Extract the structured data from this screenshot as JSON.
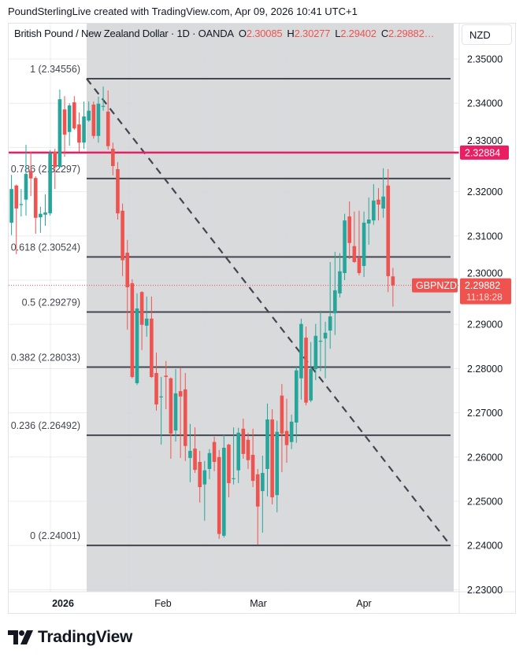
{
  "credit": "PoundSterlingLive created with TradingView.com, Apr 09, 2026 10:41 UTC+1",
  "legend": {
    "title": "British Pound / New Zealand Dollar · 1D · OANDA",
    "o_label": "O",
    "o": "2.30085",
    "h_label": "H",
    "h": "2.30277",
    "l_label": "L",
    "l": "2.29402",
    "c_label": "C",
    "c": "2.29882…"
  },
  "currency_button": "NZD",
  "logo_text": "TradingView",
  "colors": {
    "up": "#26a69a",
    "down": "#ef5350",
    "level_line": "#e91e63",
    "fib_line": "#434651",
    "shade": "#d9dadc"
  },
  "chart_data": {
    "type": "candlestick",
    "symbol": "GBPNZD",
    "ylim": [
      2.225,
      2.355
    ],
    "y_ticks": [
      "2.35000",
      "2.34000",
      "2.33000",
      "2.32000",
      "2.31000",
      "2.30000",
      "2.29000",
      "2.28000",
      "2.27000",
      "2.26000",
      "2.25000",
      "2.24000",
      "2.23000"
    ],
    "x_ticks": [
      "2026",
      "Feb",
      "Mar",
      "Apr"
    ],
    "grid": true,
    "ohlc": [
      [
        2.313,
        2.3238,
        2.3102,
        2.3206
      ],
      [
        2.3214,
        2.3216,
        2.3059,
        2.3162
      ],
      [
        2.317,
        2.3206,
        2.3144,
        2.3172
      ],
      [
        2.3182,
        2.3306,
        2.3146,
        2.324
      ],
      [
        2.3247,
        2.329,
        2.319,
        2.323
      ],
      [
        2.3231,
        2.3235,
        2.3105,
        2.3141
      ],
      [
        2.3142,
        2.3166,
        2.3107,
        2.315
      ],
      [
        2.3148,
        2.3194,
        2.3123,
        2.3153
      ],
      [
        2.3151,
        2.3294,
        2.3146,
        2.3287
      ],
      [
        2.329,
        2.3297,
        2.3206,
        2.3256
      ],
      [
        2.3256,
        2.3431,
        2.3254,
        2.3409
      ],
      [
        2.3386,
        2.3416,
        2.3279,
        2.3329
      ],
      [
        2.3335,
        2.34,
        2.3304,
        2.3395
      ],
      [
        2.3402,
        2.3416,
        2.334,
        2.3343
      ],
      [
        2.3352,
        2.3379,
        2.329,
        2.3311
      ],
      [
        2.3311,
        2.3404,
        2.3297,
        2.337
      ],
      [
        2.3361,
        2.3404,
        2.3358,
        2.3383
      ],
      [
        2.3397,
        2.3404,
        2.332,
        2.3326
      ],
      [
        2.3326,
        2.3415,
        2.3311,
        2.3399
      ],
      [
        2.3392,
        2.3438,
        2.3383,
        2.3394
      ],
      [
        2.3381,
        2.3429,
        2.3295,
        2.3303
      ],
      [
        2.3297,
        2.3311,
        2.3237,
        2.3258
      ],
      [
        2.3251,
        2.3267,
        2.3137,
        2.3151
      ],
      [
        2.3157,
        2.3173,
        2.3009,
        2.3045
      ],
      [
        2.3062,
        2.3091,
        2.2888,
        2.2984
      ],
      [
        2.2993,
        2.3002,
        2.2778,
        2.2781
      ],
      [
        2.2767,
        2.297,
        2.2763,
        2.2936
      ],
      [
        2.2973,
        2.2975,
        2.2842,
        2.2899
      ],
      [
        2.2897,
        2.2963,
        2.2872,
        2.2913
      ],
      [
        2.2913,
        2.2963,
        2.2779,
        2.2781
      ],
      [
        2.279,
        2.2836,
        2.2705,
        2.2719
      ],
      [
        2.2735,
        2.2781,
        2.2628,
        2.2737
      ],
      [
        2.2784,
        2.2817,
        2.2708,
        2.2781
      ],
      [
        2.2778,
        2.278,
        2.2596,
        2.2653
      ],
      [
        2.266,
        2.2799,
        2.2635,
        2.2744
      ],
      [
        2.2749,
        2.2803,
        2.2598,
        2.2737
      ],
      [
        2.2753,
        2.279,
        2.2591,
        2.2625
      ],
      [
        2.2598,
        2.2675,
        2.2543,
        2.2614
      ],
      [
        2.2619,
        2.2667,
        2.2564,
        2.2571
      ],
      [
        2.2589,
        2.2614,
        2.2497,
        2.2532
      ],
      [
        2.2538,
        2.2591,
        2.2456,
        2.257
      ],
      [
        2.2573,
        2.2618,
        2.255,
        2.2609
      ],
      [
        2.2634,
        2.2646,
        2.2568,
        2.2589
      ],
      [
        2.26,
        2.2616,
        2.2415,
        2.2426
      ],
      [
        2.2422,
        2.265,
        2.2418,
        2.2621
      ],
      [
        2.2628,
        2.263,
        2.2509,
        2.2541
      ],
      [
        2.255,
        2.2667,
        2.2538,
        2.2552
      ],
      [
        2.257,
        2.2666,
        2.2541,
        2.2655
      ],
      [
        2.2664,
        2.2687,
        2.2596,
        2.2607
      ],
      [
        2.2639,
        2.2655,
        2.2573,
        2.2593
      ],
      [
        2.2605,
        2.2664,
        2.2532,
        2.2546
      ],
      [
        2.2561,
        2.2573,
        2.2402,
        2.2488
      ],
      [
        2.2523,
        2.2603,
        2.2429,
        2.2564
      ],
      [
        2.2573,
        2.2721,
        2.2511,
        2.2685
      ],
      [
        2.2685,
        2.2708,
        2.2493,
        2.2509
      ],
      [
        2.2514,
        2.2682,
        2.2475,
        2.2657
      ],
      [
        2.2739,
        2.2765,
        2.2566,
        2.2653
      ],
      [
        2.2659,
        2.2732,
        2.2587,
        2.2627
      ],
      [
        2.2634,
        2.2696,
        2.2618,
        2.268
      ],
      [
        2.2678,
        2.2806,
        2.2632,
        2.2796
      ],
      [
        2.2778,
        2.2913,
        2.273,
        2.2901
      ],
      [
        2.287,
        2.2895,
        2.2717,
        2.2723
      ],
      [
        2.2728,
        2.286,
        2.2724,
        2.2799
      ],
      [
        2.2799,
        2.2901,
        2.2774,
        2.2874
      ],
      [
        2.2861,
        2.2931,
        2.2794,
        2.2863
      ],
      [
        2.2868,
        2.2906,
        2.2778,
        2.2881
      ],
      [
        2.2886,
        2.3041,
        2.2845,
        2.2918
      ],
      [
        2.2925,
        2.3064,
        2.2876,
        2.2977
      ],
      [
        2.297,
        2.3061,
        2.2961,
        2.302
      ],
      [
        2.3016,
        2.315,
        2.3,
        2.3135
      ],
      [
        2.3144,
        2.3178,
        2.3048,
        2.3084
      ],
      [
        2.3077,
        2.3155,
        2.3039,
        2.3041
      ],
      [
        2.305,
        2.3157,
        2.3011,
        2.3016
      ],
      [
        2.3032,
        2.3155,
        2.3007,
        2.313
      ],
      [
        2.3128,
        2.3187,
        2.308,
        2.3137
      ],
      [
        2.3135,
        2.3217,
        2.3125,
        2.318
      ],
      [
        2.3182,
        2.3208,
        2.3135,
        2.3171
      ],
      [
        2.3162,
        2.3253,
        2.3141,
        2.3189
      ],
      [
        2.3214,
        2.3251,
        2.2973,
        2.3009
      ],
      [
        2.30085,
        2.30277,
        2.29402,
        2.29882
      ]
    ],
    "fib_levels": [
      {
        "label": "1 (2.34556)",
        "price": 2.34556
      },
      {
        "label": "0.786 (2.32297)",
        "price": 2.32297
      },
      {
        "label": "0.618 (2.30524)",
        "price": 2.30524
      },
      {
        "label": "0.5 (2.29279)",
        "price": 2.29279
      },
      {
        "label": "0.382 (2.28033)",
        "price": 2.28033
      },
      {
        "label": "0.236 (2.26492)",
        "price": 2.26492
      },
      {
        "label": "0 (2.24001)",
        "price": 2.24001
      }
    ],
    "horizontal_line": {
      "price": 2.32884,
      "label": "2.32884"
    },
    "last_price": {
      "price": 2.29882,
      "label": "2.29882",
      "symbol_label": "GBPNZD",
      "countdown": "11:18:28"
    }
  }
}
